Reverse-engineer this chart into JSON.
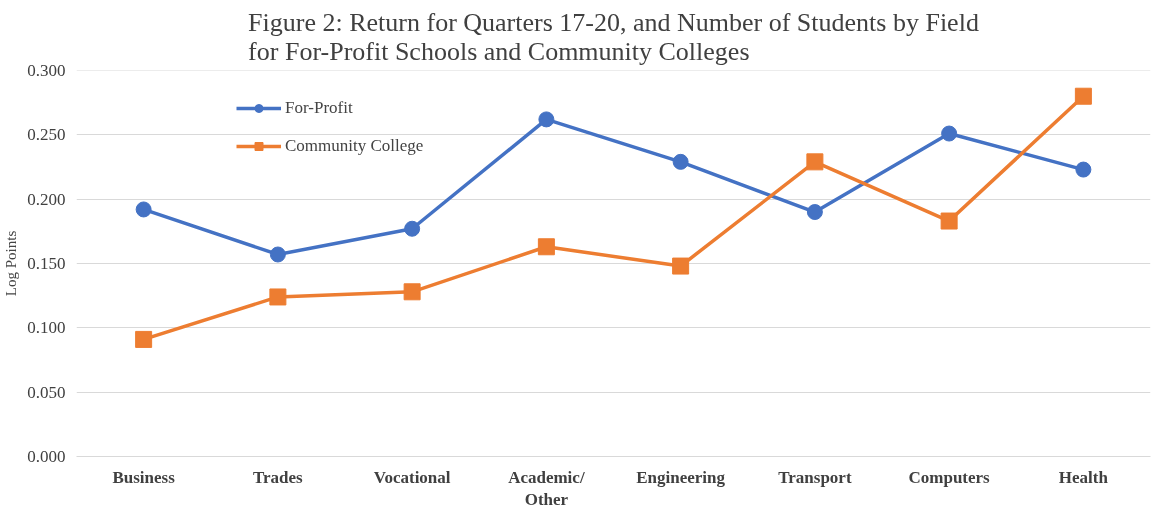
{
  "chart_data": {
    "type": "line",
    "title": "Figure 2: Return for Quarters 17-20, and Number of Students by Field\nfor For-Profit Schools and Community Colleges",
    "ylabel": "Log Points",
    "categories": [
      "Business",
      "Trades",
      "Vocational",
      "Academic/ Other",
      "Engineering",
      "Transport",
      "Computers",
      "Health"
    ],
    "series": [
      {
        "name": "For-Profit",
        "color": "#4472c4",
        "marker": "circle",
        "values": [
          0.192,
          0.157,
          0.177,
          0.262,
          0.229,
          0.19,
          0.251,
          0.223
        ]
      },
      {
        "name": "Community College",
        "color": "#ed7d31",
        "marker": "square",
        "values": [
          0.091,
          0.124,
          0.128,
          0.163,
          0.148,
          0.229,
          0.183,
          0.28
        ]
      }
    ],
    "ylim": [
      0,
      0.3
    ],
    "yticks": [
      {
        "value": 0,
        "label": "0.000"
      },
      {
        "value": 0.05,
        "label": "0.050"
      },
      {
        "value": 0.1,
        "label": "0.100"
      },
      {
        "value": 0.15,
        "label": "0.150"
      },
      {
        "value": 0.2,
        "label": "0.200"
      },
      {
        "value": 0.25,
        "label": "0.250"
      },
      {
        "value": 0.3,
        "label": "0.300"
      }
    ],
    "grid": "y",
    "legend": "top left",
    "line_style": "solid"
  }
}
